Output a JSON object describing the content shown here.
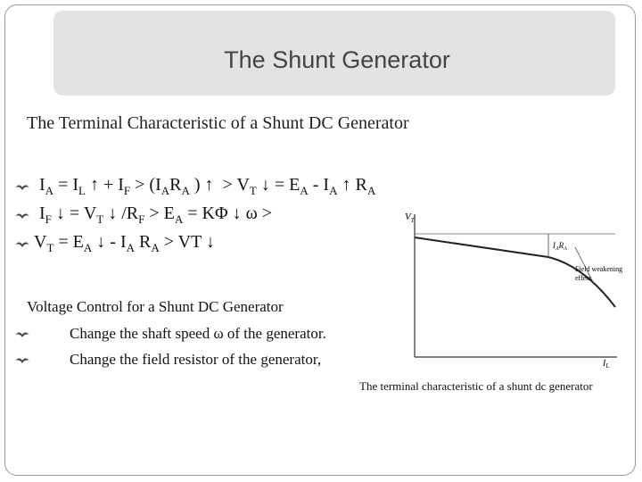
{
  "title": "The Shunt Generator",
  "subtitle": "The Terminal Characteristic of a Shunt DC Generator",
  "equations": [
    [
      {
        "t": "I",
        "sub": "A"
      },
      {
        "t": " = I",
        "sub": "L"
      },
      {
        "t": " ↑ + I",
        "sub": "F"
      },
      {
        "t": " > (I",
        "sub": "A"
      },
      {
        "t": "R",
        "sub": "A"
      },
      {
        "t": " ) ↑  > V",
        "sub": "T"
      },
      {
        "t": " ↓ = E",
        "sub": "A"
      },
      {
        "t": " - I",
        "sub": "A"
      },
      {
        "t": " ↑ R",
        "sub": "A"
      }
    ],
    [
      {
        "t": "I",
        "sub": "F"
      },
      {
        "t": " ↓ = V",
        "sub": "T"
      },
      {
        "t": " ↓ /R",
        "sub": "F"
      },
      {
        "t": " > E",
        "sub": "A"
      },
      {
        "t": " = KΦ ↓ ω >"
      }
    ],
    [
      {
        "t": "V",
        "sub": "T"
      },
      {
        "t": " = E",
        "sub": "A"
      },
      {
        "t": " ↓ - I",
        "sub": "A"
      },
      {
        "t": " R",
        "sub": "A"
      },
      {
        "t": " > VT ↓"
      }
    ]
  ],
  "voltage_control": {
    "heading": "Voltage Control for a Shunt DC Generator",
    "items": [
      "Change the shaft speed ω of the generator.",
      "Change the field resistor of the generator,"
    ]
  },
  "figure": {
    "y_label": "V",
    "y_label_sub": "T",
    "drop_label": "I",
    "drop_label_sub": "A",
    "drop_label_2": "R",
    "drop_label_2_sub": "A",
    "note": [
      "Field weakening",
      "effect"
    ],
    "x_label": "I",
    "x_label_sub": "L",
    "caption": "The terminal characteristic of a shunt dc generator"
  }
}
